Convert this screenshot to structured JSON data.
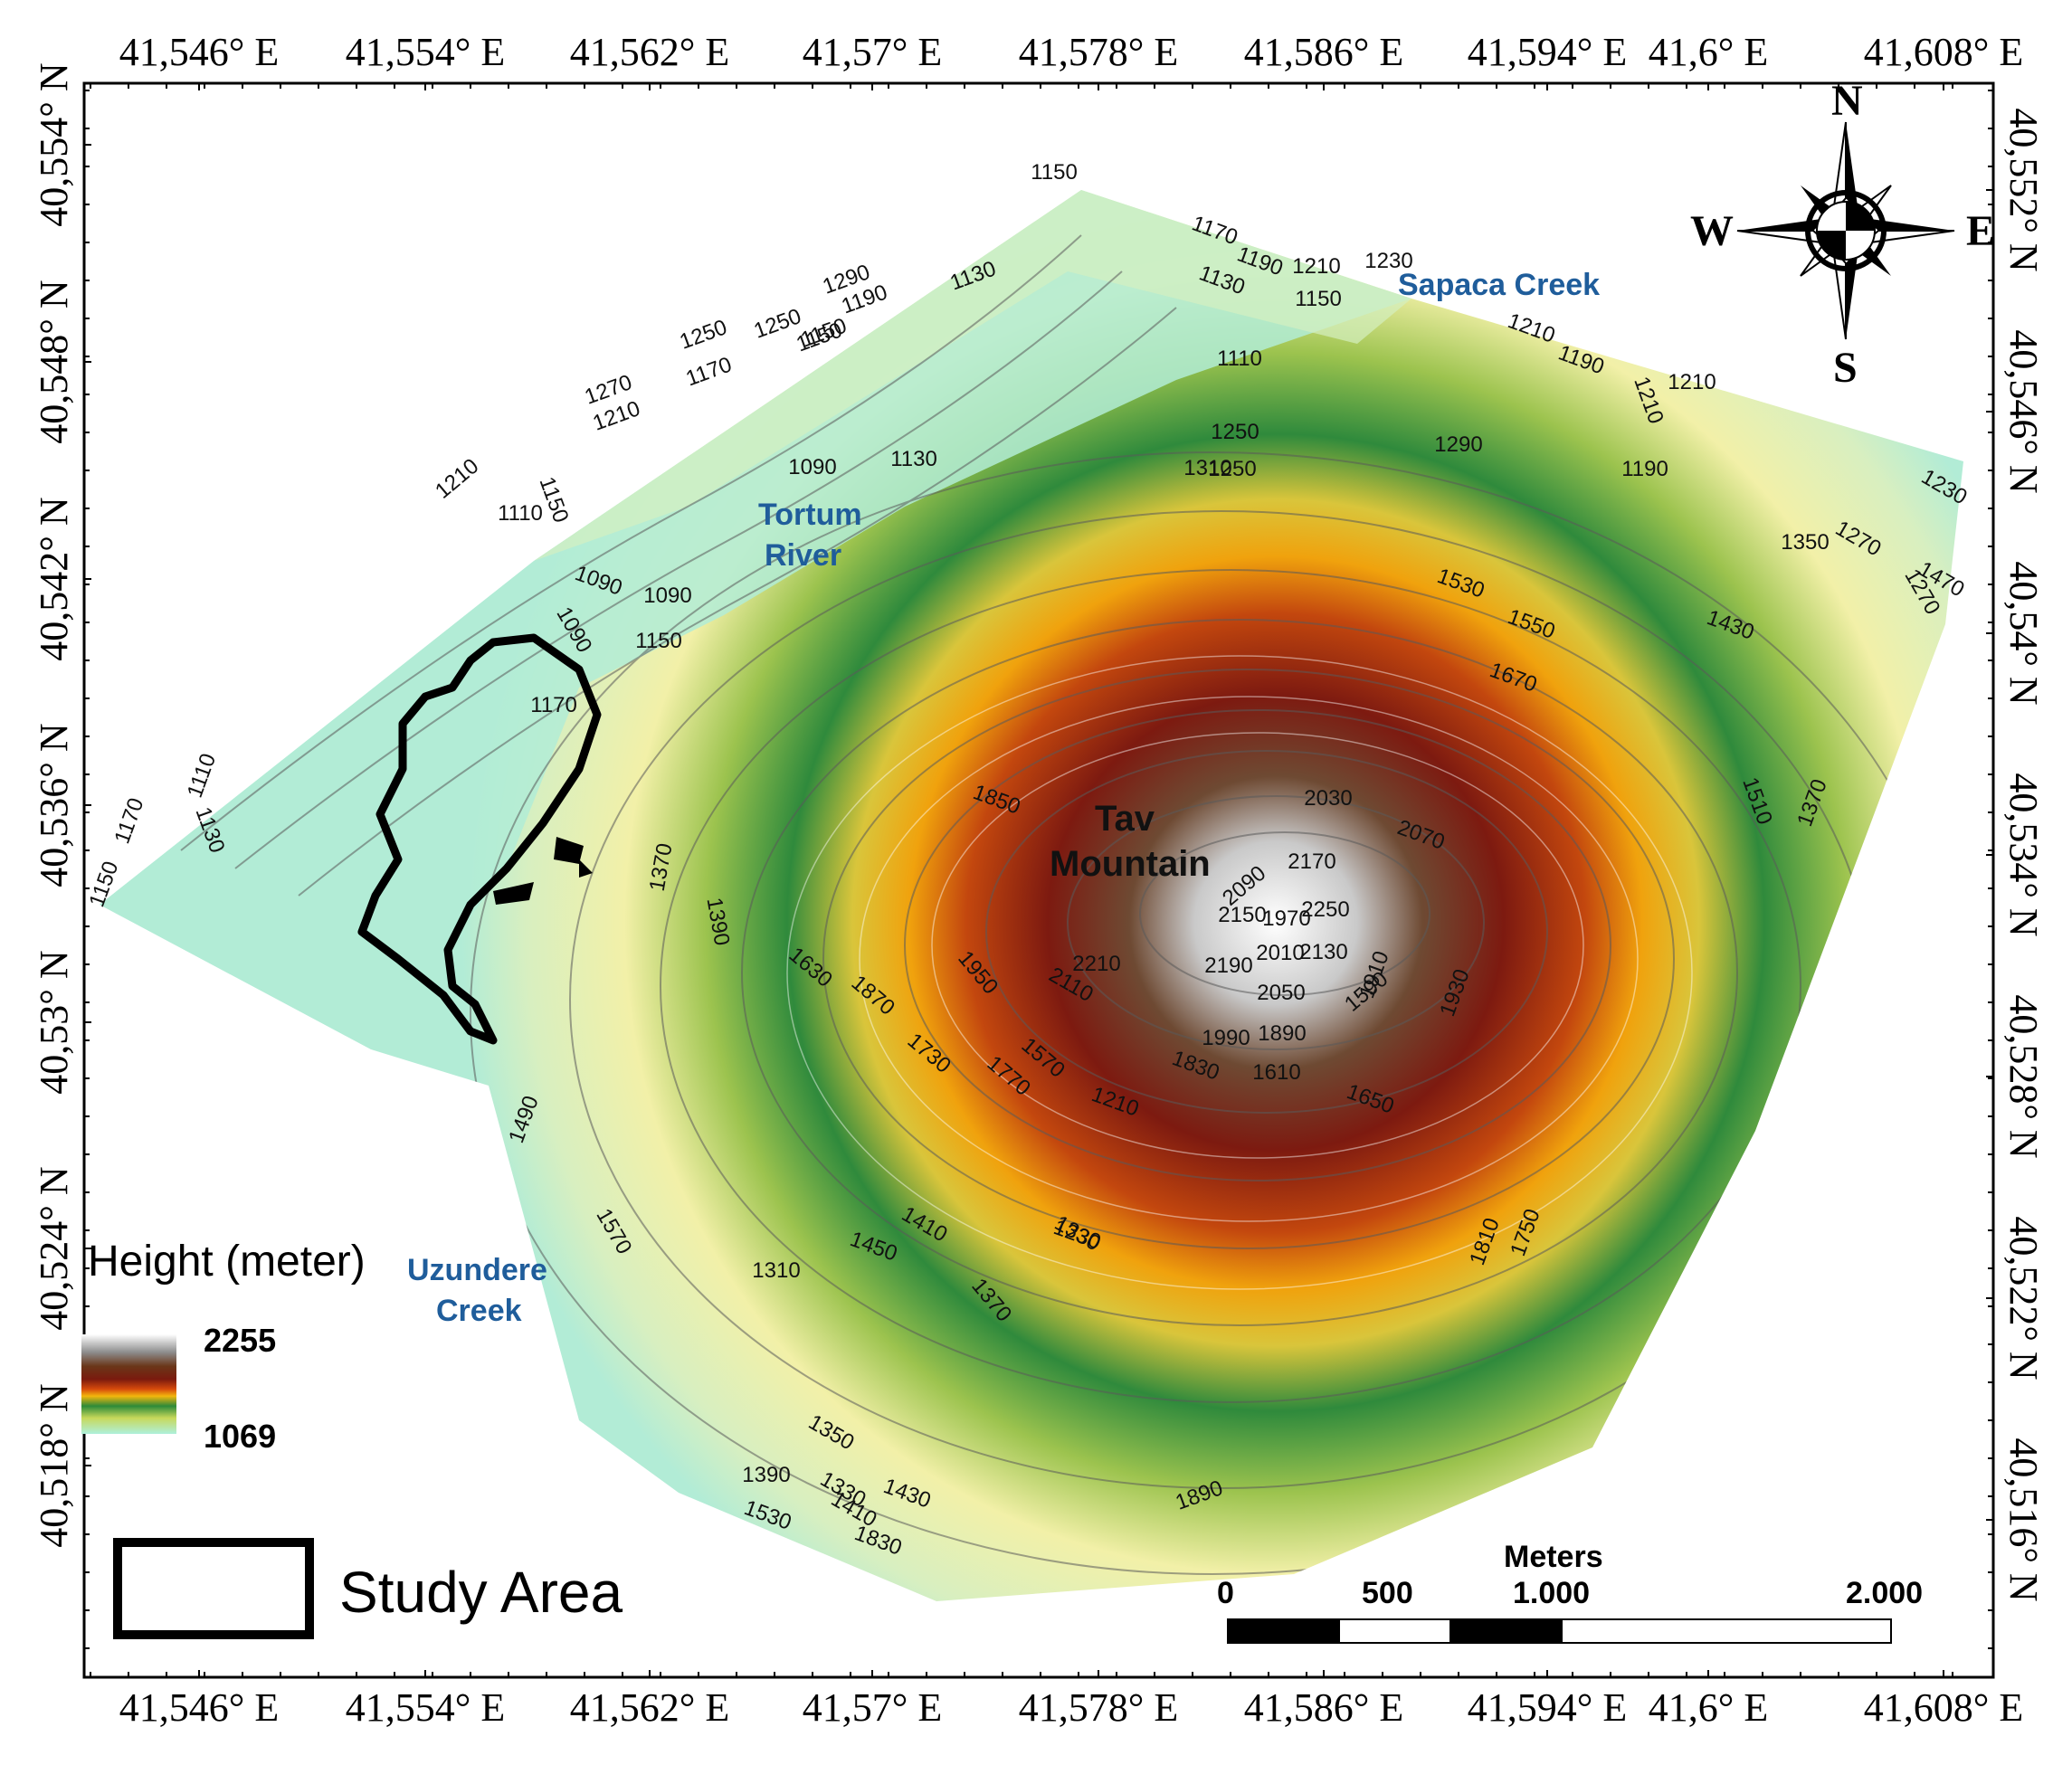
{
  "map": {
    "top_longitudes": [
      "41,546° E",
      "41,554° E",
      "41,562° E",
      "41,57° E",
      "41,578° E",
      "41,586° E",
      "41,594° E",
      "41,6° E",
      "41,608° E"
    ],
    "bottom_longitudes": [
      "41,546° E",
      "41,554° E",
      "41,562° E",
      "41,57° E",
      "41,578° E",
      "41,586° E",
      "41,594° E",
      "41,6° E",
      "41,608° E"
    ],
    "left_latitudes": [
      "40,554° N",
      "40,548° N",
      "40,542° N",
      "40,536° N",
      "40,53° N",
      "40,524° N",
      "40,518° N"
    ],
    "right_latitudes": [
      "40,552° N",
      "40,546° N",
      "40,54° N",
      "40,534° N",
      "40,528° N",
      "40,522° N",
      "40,516° N"
    ],
    "places": {
      "tortum_1": "Tortum",
      "tortum_2": "River",
      "sapaca": "Sapaca Creek",
      "uzundere_1": "Uzundere",
      "uzundere_2": "Creek",
      "tav_1": "Tav",
      "tav_2": "Mountain"
    },
    "contour_labels": [
      "1150",
      "1170",
      "1190",
      "1210",
      "1230",
      "1290",
      "1190",
      "1130",
      "1250",
      "1250",
      "1150",
      "1270",
      "1170",
      "1150",
      "1210",
      "1130",
      "1150",
      "1110",
      "1210",
      "1190",
      "1210",
      "1210",
      "1250",
      "1210",
      "1150",
      "1110",
      "1090",
      "1130",
      "1250",
      "1310",
      "1290",
      "1190",
      "1230",
      "1350",
      "1470",
      "1530",
      "1550",
      "1430",
      "1270",
      "1270",
      "1090",
      "1090",
      "1090",
      "1150",
      "1170",
      "1670",
      "1510",
      "1370",
      "1110",
      "1130",
      "1170",
      "1150",
      "1370",
      "1390",
      "1850",
      "2030",
      "2070",
      "2090",
      "2170",
      "2150",
      "2250",
      "1970",
      "2010",
      "2210",
      "2190",
      "2130",
      "1910",
      "1930",
      "2110",
      "2050",
      "1590",
      "1630",
      "1870",
      "1950",
      "1990",
      "1890",
      "1830",
      "1610",
      "1650",
      "1730",
      "1770",
      "1570",
      "1210",
      "1230",
      "1490",
      "1570",
      "1410",
      "1330",
      "1450",
      "1310",
      "1370",
      "1350",
      "1390",
      "1330",
      "1410",
      "1430",
      "1530",
      "1830",
      "1890",
      "1810",
      "1750"
    ],
    "compass": {
      "n": "N",
      "s": "S",
      "e": "E",
      "w": "W"
    },
    "legend": {
      "title": "Height (meter)",
      "max": "2255",
      "min": "1069",
      "study_area": "Study Area",
      "colors": [
        "#ffffff",
        "#9e9e9e",
        "#6b3a1e",
        "#7a1a0e",
        "#c7400e",
        "#f3a90a",
        "#2f8a3c",
        "#a4c64a",
        "#f5f3a6",
        "#b2ecd6"
      ]
    },
    "scale": {
      "unit": "Meters",
      "ticks": [
        "0",
        "500",
        "1.000",
        "2.000"
      ]
    }
  }
}
